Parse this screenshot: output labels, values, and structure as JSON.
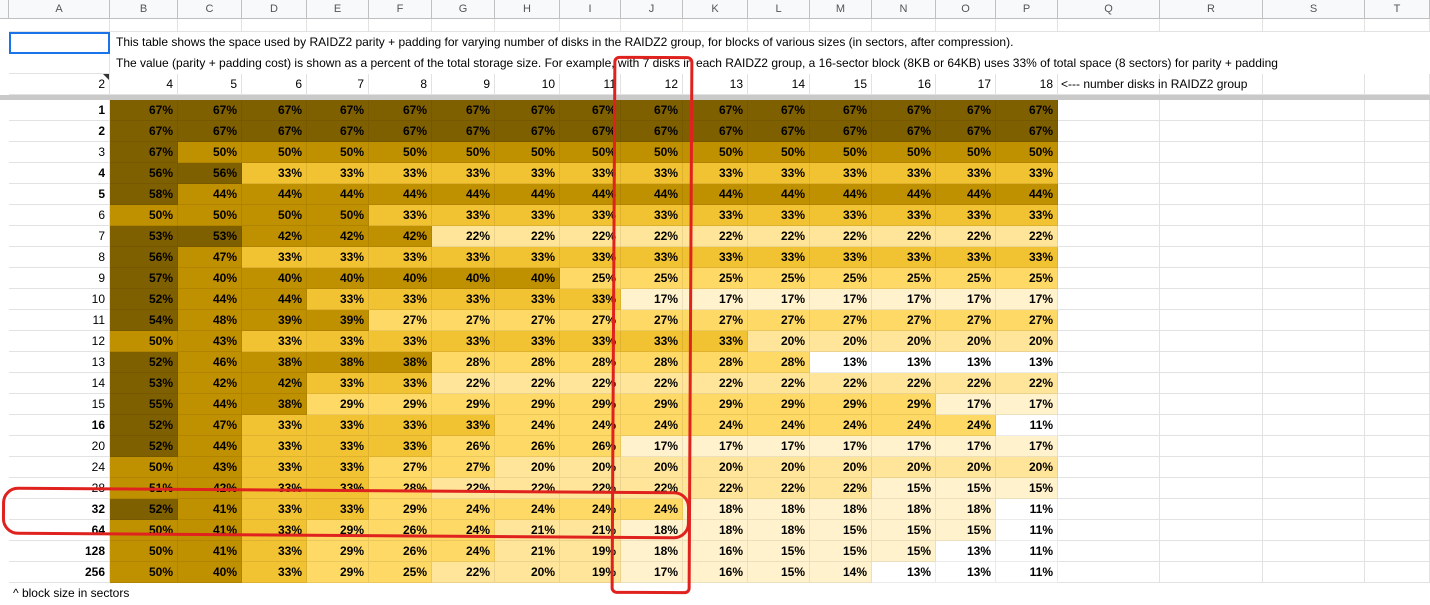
{
  "columns": [
    "A",
    "B",
    "C",
    "D",
    "E",
    "F",
    "G",
    "H",
    "I",
    "J",
    "K",
    "L",
    "M",
    "N",
    "O",
    "P",
    "Q",
    "R",
    "S",
    "T"
  ],
  "note_line1": "This table shows the space used by RAIDZ2 parity + padding for varying number of disks in the RAIDZ2 group, for blocks of various sizes (in sectors, after compression).",
  "note_line2": "The value (parity + padding cost) is shown as a percent of the total storage size.  For example, with 7 disks in each RAIDZ2 group, a 16-sector block (8KB or 64KB) uses 33% of total space (8 sectors) for parity + padding",
  "disk_label_first": "2",
  "disks": [
    "4",
    "5",
    "6",
    "7",
    "8",
    "9",
    "10",
    "11",
    "12",
    "13",
    "14",
    "15",
    "16",
    "17",
    "18"
  ],
  "disks_note": "<--- number disks in RAIDZ2 group",
  "footer": "^ block size in sectors",
  "table": {
    "row_labels": [
      "1",
      "2",
      "3",
      "4",
      "5",
      "6",
      "7",
      "8",
      "9",
      "10",
      "11",
      "12",
      "13",
      "14",
      "15",
      "16",
      "20",
      "24",
      "28",
      "32",
      "64",
      "128",
      "256"
    ],
    "bold_rows": [
      0,
      1,
      3,
      4,
      15,
      19,
      20,
      21,
      22
    ],
    "values": [
      [
        67,
        67,
        67,
        67,
        67,
        67,
        67,
        67,
        67,
        67,
        67,
        67,
        67,
        67,
        67
      ],
      [
        67,
        67,
        67,
        67,
        67,
        67,
        67,
        67,
        67,
        67,
        67,
        67,
        67,
        67,
        67
      ],
      [
        67,
        50,
        50,
        50,
        50,
        50,
        50,
        50,
        50,
        50,
        50,
        50,
        50,
        50,
        50
      ],
      [
        56,
        56,
        33,
        33,
        33,
        33,
        33,
        33,
        33,
        33,
        33,
        33,
        33,
        33,
        33
      ],
      [
        58,
        44,
        44,
        44,
        44,
        44,
        44,
        44,
        44,
        44,
        44,
        44,
        44,
        44,
        44
      ],
      [
        50,
        50,
        50,
        50,
        33,
        33,
        33,
        33,
        33,
        33,
        33,
        33,
        33,
        33,
        33
      ],
      [
        53,
        53,
        42,
        42,
        42,
        22,
        22,
        22,
        22,
        22,
        22,
        22,
        22,
        22,
        22
      ],
      [
        56,
        47,
        33,
        33,
        33,
        33,
        33,
        33,
        33,
        33,
        33,
        33,
        33,
        33,
        33
      ],
      [
        57,
        40,
        40,
        40,
        40,
        40,
        40,
        25,
        25,
        25,
        25,
        25,
        25,
        25,
        25
      ],
      [
        52,
        44,
        44,
        33,
        33,
        33,
        33,
        33,
        17,
        17,
        17,
        17,
        17,
        17,
        17
      ],
      [
        54,
        48,
        39,
        39,
        27,
        27,
        27,
        27,
        27,
        27,
        27,
        27,
        27,
        27,
        27
      ],
      [
        50,
        43,
        33,
        33,
        33,
        33,
        33,
        33,
        33,
        33,
        20,
        20,
        20,
        20,
        20
      ],
      [
        52,
        46,
        38,
        38,
        38,
        28,
        28,
        28,
        28,
        28,
        28,
        13,
        13,
        13,
        13
      ],
      [
        53,
        42,
        42,
        33,
        33,
        22,
        22,
        22,
        22,
        22,
        22,
        22,
        22,
        22,
        22
      ],
      [
        55,
        44,
        38,
        29,
        29,
        29,
        29,
        29,
        29,
        29,
        29,
        29,
        29,
        17,
        17
      ],
      [
        52,
        47,
        33,
        33,
        33,
        33,
        24,
        24,
        24,
        24,
        24,
        24,
        24,
        24,
        11
      ],
      [
        52,
        44,
        33,
        33,
        33,
        26,
        26,
        26,
        17,
        17,
        17,
        17,
        17,
        17,
        17
      ],
      [
        50,
        43,
        33,
        33,
        27,
        27,
        20,
        20,
        20,
        20,
        20,
        20,
        20,
        20,
        20
      ],
      [
        51,
        42,
        33,
        33,
        28,
        22,
        22,
        22,
        22,
        22,
        22,
        22,
        15,
        15,
        15
      ],
      [
        52,
        41,
        33,
        33,
        29,
        24,
        24,
        24,
        24,
        18,
        18,
        18,
        18,
        18,
        11
      ],
      [
        50,
        41,
        33,
        29,
        26,
        24,
        21,
        21,
        18,
        18,
        18,
        15,
        15,
        15,
        11
      ],
      [
        50,
        41,
        33,
        29,
        26,
        24,
        21,
        19,
        18,
        16,
        15,
        15,
        15,
        13,
        11
      ],
      [
        50,
        40,
        33,
        29,
        25,
        22,
        20,
        19,
        17,
        16,
        15,
        14,
        13,
        13,
        11
      ]
    ]
  },
  "colors": {
    "level_67": "#7f6000",
    "level_50_plus": "#bf9000",
    "level_40": "#bf9000",
    "level_30": "#f1c232",
    "level_25": "#ffd966",
    "level_20": "#ffe599",
    "level_15": "#fff2cc",
    "level_low": "#ffffff",
    "annotation": "#e0221f",
    "selection": "#1a73e8"
  }
}
